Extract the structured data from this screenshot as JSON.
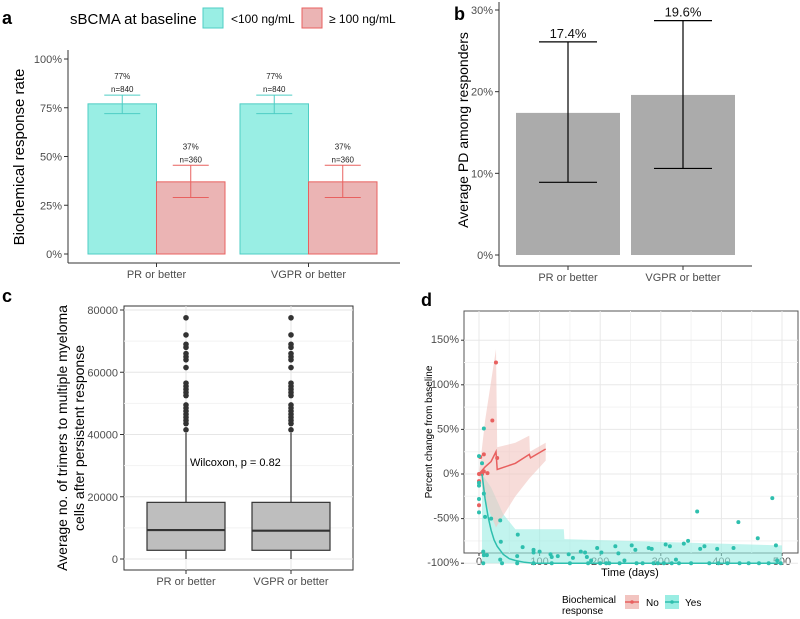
{
  "chart_data": [
    {
      "panel": "a",
      "type": "bar",
      "legend": {
        "title": "sBCMA at baseline",
        "placement": "top",
        "entries": [
          "<100 ng/mL",
          "≥ 100 ng/mL"
        ]
      },
      "colors": {
        "fill": [
          "#99EEE4",
          "#EBB4B4"
        ],
        "stroke": [
          "#4ECDC4",
          "#E8605F"
        ]
      },
      "categories": [
        "PR or better",
        "VGPR or better"
      ],
      "ylabel": "Biochemical response rate",
      "ylim": [
        0,
        1
      ],
      "yticks": [
        "0%",
        "25%",
        "50%",
        "75%",
        "100%"
      ],
      "series": [
        {
          "name": "<100 ng/mL",
          "values": [
            0.77,
            0.77
          ],
          "err_low": [
            0.72,
            0.72
          ],
          "err_high": [
            0.815,
            0.815
          ],
          "labels": [
            "77%",
            "77%"
          ],
          "n": [
            "n=840",
            "n=840"
          ]
        },
        {
          "name": "≥ 100 ng/mL",
          "values": [
            0.37,
            0.37
          ],
          "err_low": [
            0.29,
            0.29
          ],
          "err_high": [
            0.455,
            0.455
          ],
          "labels": [
            "37%",
            "37%"
          ],
          "n": [
            "n=360",
            "n=360"
          ]
        }
      ]
    },
    {
      "panel": "b",
      "type": "bar",
      "categories": [
        "PR or better",
        "VGPR or better"
      ],
      "values": [
        17.4,
        19.6
      ],
      "err_low": [
        8.9,
        10.6
      ],
      "err_high": [
        26.1,
        28.7
      ],
      "labels": [
        "17.4%",
        "19.6%"
      ],
      "ylabel": "Average PD among responders",
      "ylim": [
        0,
        30
      ],
      "yticks": [
        "0%",
        "10%",
        "20%",
        "30%"
      ],
      "color": "#ABABAB"
    },
    {
      "panel": "c",
      "type": "box",
      "categories": [
        "PR or better",
        "VGPR or better"
      ],
      "boxes": [
        {
          "q1": 2800,
          "median": 9300,
          "q3": 18200,
          "whisker_low": 0,
          "whisker_high": 40500
        },
        {
          "q1": 2800,
          "median": 9100,
          "q3": 18200,
          "whisker_low": 0,
          "whisker_high": 40500
        }
      ],
      "outliers": [
        41500,
        43500,
        44500,
        45500,
        46500,
        47500,
        48500,
        49500,
        52500,
        53500,
        54500,
        55500,
        56500,
        61500,
        64000,
        65000,
        66000,
        68000,
        69000,
        72000,
        77500
      ],
      "ylabel": [
        "Average no. of trimers to multiple myeloma",
        "cells after persistent response"
      ],
      "ylim": [
        -3500,
        81000
      ],
      "yticks": [
        0,
        20000,
        40000,
        60000,
        80000
      ],
      "annotation": "Wilcoxon, p = 0.82",
      "grid": true,
      "color": "#BEBEBE"
    },
    {
      "panel": "d",
      "type": "scatter",
      "xlabel": "Time (days)",
      "ylabel": "Percent change from baseline",
      "xlim": [
        -25,
        525
      ],
      "ylim": [
        -112,
        155
      ],
      "xticks": [
        0,
        100,
        200,
        300,
        400,
        500
      ],
      "yticks": [
        -100,
        -50,
        0,
        50,
        100,
        150
      ],
      "ytick_labels": [
        "-100%",
        "-50%",
        "0%",
        "50%",
        "100%",
        "150%"
      ],
      "grid": true,
      "legend": {
        "title": [
          "Biochemical",
          "response"
        ],
        "placement": "bottom"
      },
      "series": [
        {
          "name": "No",
          "color": "#E8605F",
          "ribbon_color": "#F2C4C0",
          "points": [
            [
              0,
              0
            ],
            [
              0,
              -8
            ],
            [
              0,
              -35
            ],
            [
              2,
              19
            ],
            [
              5,
              0
            ],
            [
              8,
              3
            ],
            [
              8,
              22
            ],
            [
              14,
              1
            ],
            [
              22,
              60
            ],
            [
              28,
              125
            ],
            [
              30,
              18
            ]
          ],
          "fit": [
            [
              0,
              0
            ],
            [
              10,
              8
            ],
            [
              20,
              14
            ],
            [
              28,
              25
            ],
            [
              30,
              5
            ],
            [
              60,
              12
            ],
            [
              83,
              22
            ],
            [
              85,
              18
            ],
            [
              110,
              28
            ]
          ],
          "ribbon_upper": [
            [
              0,
              0
            ],
            [
              10,
              60
            ],
            [
              28,
              140
            ],
            [
              30,
              30
            ],
            [
              60,
              35
            ],
            [
              83,
              43
            ],
            [
              84,
              25
            ],
            [
              110,
              35
            ]
          ],
          "ribbon_lower": [
            [
              0,
              0
            ],
            [
              10,
              -30
            ],
            [
              28,
              -60
            ],
            [
              35,
              -52
            ],
            [
              60,
              -25
            ],
            [
              83,
              -5
            ],
            [
              110,
              15
            ]
          ]
        },
        {
          "name": "Yes",
          "color": "#2EBFAE",
          "ribbon_color": "#9AEDE3",
          "points": [
            [
              0,
              20
            ],
            [
              0,
              -10
            ],
            [
              0,
              -13
            ],
            [
              0,
              -28
            ],
            [
              0,
              -43
            ],
            [
              8,
              51
            ],
            [
              5,
              12
            ],
            [
              8,
              -22
            ],
            [
              10,
              -48
            ],
            [
              7,
              -87
            ],
            [
              7,
              -100
            ],
            [
              8,
              -91
            ],
            [
              13,
              -91
            ],
            [
              20,
              -50
            ],
            [
              35,
              -52
            ],
            [
              36,
              -76
            ],
            [
              35,
              -96
            ],
            [
              38,
              -100
            ],
            [
              64,
              -68
            ],
            [
              63,
              -92
            ],
            [
              63,
              -100
            ],
            [
              72,
              -82
            ],
            [
              90,
              -85
            ],
            [
              90,
              -88
            ],
            [
              90,
              -100
            ],
            [
              100,
              -87
            ],
            [
              118,
              -90
            ],
            [
              120,
              -93
            ],
            [
              120,
              -100
            ],
            [
              130,
              -92
            ],
            [
              148,
              -90
            ],
            [
              150,
              -100
            ],
            [
              155,
              -94
            ],
            [
              168,
              -87
            ],
            [
              175,
              -88
            ],
            [
              178,
              -93
            ],
            [
              180,
              -100
            ],
            [
              185,
              -97
            ],
            [
              195,
              -83
            ],
            [
              200,
              -100
            ],
            [
              202,
              -88
            ],
            [
              210,
              -100
            ],
            [
              215,
              -100
            ],
            [
              225,
              -81
            ],
            [
              230,
              -89
            ],
            [
              232,
              -100
            ],
            [
              240,
              -97
            ],
            [
              252,
              -80
            ],
            [
              258,
              -85
            ],
            [
              260,
              -100
            ],
            [
              270,
              -100
            ],
            [
              280,
              -83
            ],
            [
              285,
              -84
            ],
            [
              288,
              -100
            ],
            [
              295,
              -100
            ],
            [
              305,
              -100
            ],
            [
              308,
              -79
            ],
            [
              315,
              -81
            ],
            [
              318,
              -100
            ],
            [
              325,
              -96
            ],
            [
              330,
              -100
            ],
            [
              338,
              -78
            ],
            [
              345,
              -75
            ],
            [
              350,
              -100
            ],
            [
              360,
              -42
            ],
            [
              365,
              -84
            ],
            [
              372,
              -81
            ],
            [
              380,
              -100
            ],
            [
              393,
              -84
            ],
            [
              395,
              -100
            ],
            [
              410,
              -100
            ],
            [
              420,
              -83
            ],
            [
              428,
              -54
            ],
            [
              430,
              -100
            ],
            [
              445,
              -100
            ],
            [
              460,
              -72
            ],
            [
              462,
              -100
            ],
            [
              478,
              -100
            ],
            [
              484,
              -27
            ],
            [
              490,
              -80
            ],
            [
              492,
              -97
            ],
            [
              498,
              -100
            ]
          ],
          "fit": [
            [
              5,
              0
            ],
            [
              10,
              -28
            ],
            [
              15,
              -48
            ],
            [
              20,
              -63
            ],
            [
              25,
              -74
            ],
            [
              30,
              -81
            ],
            [
              40,
              -90
            ],
            [
              50,
              -95
            ],
            [
              60,
              -97
            ],
            [
              75,
              -99
            ],
            [
              90,
              -100
            ],
            [
              500,
              -100
            ]
          ],
          "ribbon_upper": [
            [
              5,
              0
            ],
            [
              20,
              -15
            ],
            [
              40,
              -45
            ],
            [
              60,
              -62
            ],
            [
              140,
              -62
            ],
            [
              141,
              -73
            ],
            [
              500,
              -80
            ]
          ],
          "ribbon_lower": [
            [
              5,
              -100
            ],
            [
              500,
              -100
            ]
          ]
        }
      ]
    }
  ],
  "panel_labels": [
    "a",
    "b",
    "c",
    "d"
  ]
}
